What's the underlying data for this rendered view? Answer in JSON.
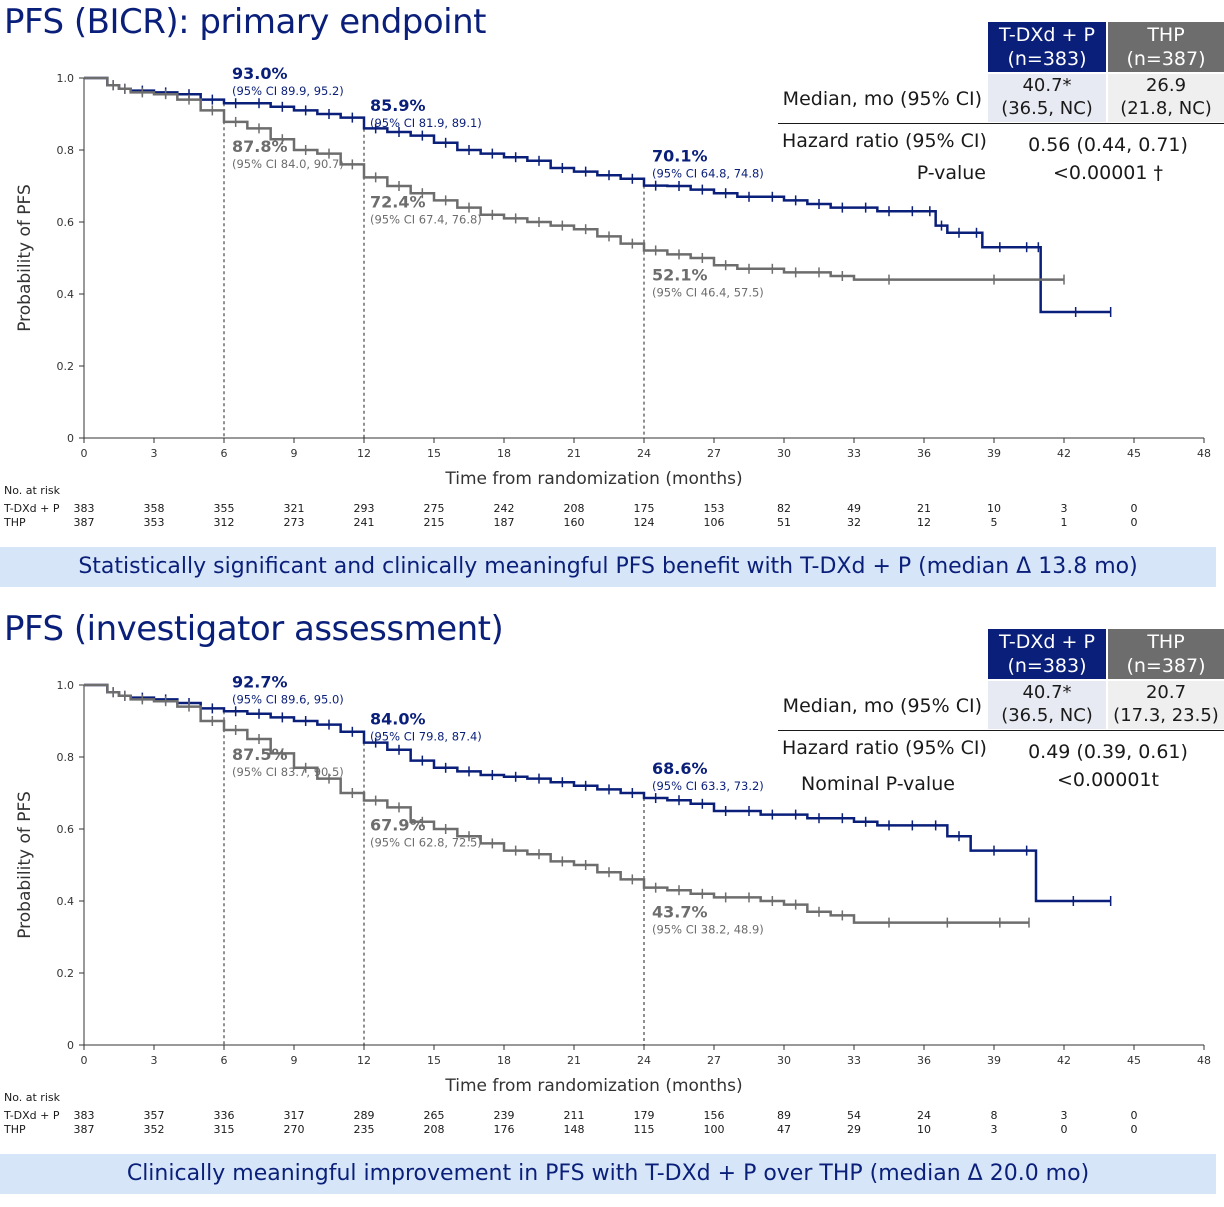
{
  "colors": {
    "tdxd": "#0a1f7a",
    "thp": "#6d6d6d",
    "banner": "#d6e5f7"
  },
  "panels": [
    {
      "title": "PFS (BICR): primary endpoint",
      "arms": {
        "tdxd_label": "T-DXd + P",
        "tdxd_n": "(n=383)",
        "thp_label": "THP",
        "thp_n": "(n=387)"
      },
      "median_label": "Median, mo (95% CI)",
      "median_tdxd": "40.7*",
      "median_tdxd_ci": "(36.5, NC)",
      "median_thp": "26.9",
      "median_thp_ci": "(21.8, NC)",
      "hr_label": "Hazard ratio (95% CI)",
      "hr_value": "0.56 (0.44, 0.71)",
      "p_label": "P-value",
      "p_value": "<0.00001 †",
      "banner": "Statistically significant and clinically meaningful PFS benefit with T-DXd + P (median Δ 13.8 mo)",
      "risk": {
        "header": "No. at risk",
        "tdxd_label": "T-DXd + P",
        "thp_label": "THP",
        "tdxd": [
          "383",
          "358",
          "355",
          "321",
          "293",
          "275",
          "242",
          "208",
          "175",
          "153",
          "82",
          "49",
          "21",
          "10",
          "3",
          "0"
        ],
        "thp": [
          "387",
          "353",
          "312",
          "273",
          "241",
          "215",
          "187",
          "160",
          "124",
          "106",
          "51",
          "32",
          "12",
          "5",
          "1",
          "0"
        ]
      },
      "chart_data": {
        "type": "line",
        "xlabel": "Time from randomization (months)",
        "ylabel": "Probability of PFS",
        "xlim": [
          0,
          48
        ],
        "ylim": [
          0,
          1
        ],
        "xticks": [
          "0",
          "3",
          "6",
          "9",
          "12",
          "15",
          "18",
          "21",
          "24",
          "27",
          "30",
          "33",
          "36",
          "39",
          "42",
          "45",
          "48"
        ],
        "yticks": [
          "0",
          "0.2",
          "0.4",
          "0.6",
          "0.8",
          "1.0"
        ],
        "series": [
          {
            "name": "T-DXd + P",
            "x": [
              0,
              1,
              1.5,
              2,
              3,
              4,
              5,
              6,
              7,
              8,
              9,
              10,
              11,
              12,
              13,
              14,
              15,
              16,
              17,
              18,
              19,
              20,
              21,
              22,
              23,
              24,
              25,
              26,
              27,
              28,
              29,
              30,
              31,
              32,
              33,
              34,
              35,
              36,
              36.5,
              37,
              38,
              38.5,
              40,
              40.8,
              41,
              44
            ],
            "y": [
              1,
              0.98,
              0.97,
              0.965,
              0.96,
              0.955,
              0.94,
              0.93,
              0.93,
              0.92,
              0.91,
              0.9,
              0.89,
              0.86,
              0.85,
              0.84,
              0.82,
              0.8,
              0.79,
              0.78,
              0.77,
              0.75,
              0.74,
              0.73,
              0.72,
              0.701,
              0.7,
              0.69,
              0.68,
              0.67,
              0.67,
              0.66,
              0.65,
              0.64,
              0.64,
              0.63,
              0.63,
              0.63,
              0.59,
              0.57,
              0.57,
              0.53,
              0.53,
              0.53,
              0.35,
              0.35
            ]
          },
          {
            "name": "THP",
            "x": [
              0,
              1,
              1.5,
              2,
              3,
              4,
              5,
              6,
              7,
              8,
              9,
              10,
              11,
              12,
              13,
              14,
              15,
              16,
              17,
              18,
              19,
              20,
              21,
              22,
              23,
              24,
              25,
              26,
              27,
              28,
              29,
              30,
              31,
              32,
              33,
              36,
              42
            ],
            "y": [
              1,
              0.98,
              0.97,
              0.96,
              0.955,
              0.94,
              0.91,
              0.878,
              0.86,
              0.83,
              0.8,
              0.79,
              0.76,
              0.724,
              0.7,
              0.68,
              0.66,
              0.64,
              0.62,
              0.61,
              0.6,
              0.59,
              0.58,
              0.56,
              0.54,
              0.521,
              0.51,
              0.5,
              0.48,
              0.47,
              0.47,
              0.46,
              0.46,
              0.45,
              0.44,
              0.44,
              0.44
            ]
          }
        ],
        "annotations": [
          {
            "arm": "tdxd",
            "x": 6,
            "y": 0.93,
            "pct": "93.0%",
            "ci": "(95% CI 89.9, 95.2)"
          },
          {
            "arm": "tdxd",
            "x": 12,
            "y": 0.859,
            "pct": "85.9%",
            "ci": "(95% CI 81.9, 89.1)"
          },
          {
            "arm": "tdxd",
            "x": 24,
            "y": 0.701,
            "pct": "70.1%",
            "ci": "(95% CI 64.8, 74.8)"
          },
          {
            "arm": "thp",
            "x": 6,
            "y": 0.878,
            "pct": "87.8%",
            "ci": "(95% CI 84.0, 90.7)"
          },
          {
            "arm": "thp",
            "x": 12,
            "y": 0.724,
            "pct": "72.4%",
            "ci": "(95% CI 67.4, 76.8)"
          },
          {
            "arm": "thp",
            "x": 24,
            "y": 0.521,
            "pct": "52.1%",
            "ci": "(95% CI 46.4, 57.5)"
          }
        ]
      }
    },
    {
      "title": "PFS (investigator assessment)",
      "arms": {
        "tdxd_label": "T-DXd + P",
        "tdxd_n": "(n=383)",
        "thp_label": "THP",
        "thp_n": "(n=387)"
      },
      "median_label": "Median, mo (95% CI)",
      "median_tdxd": "40.7*",
      "median_tdxd_ci": "(36.5, NC)",
      "median_thp": "20.7",
      "median_thp_ci": "(17.3, 23.5)",
      "hr_label": "Hazard ratio (95% CI)",
      "hr_value": "0.49 (0.39, 0.61)",
      "p_label": "Nominal P-value",
      "p_value": "<0.00001t",
      "banner": "Clinically meaningful improvement in PFS with T-DXd + P over THP (median Δ 20.0 mo)",
      "risk": {
        "header": "No. at risk",
        "tdxd_label": "T-DXd + P",
        "thp_label": "THP",
        "tdxd": [
          "383",
          "357",
          "336",
          "317",
          "289",
          "265",
          "239",
          "211",
          "179",
          "156",
          "89",
          "54",
          "24",
          "8",
          "3",
          "0"
        ],
        "thp": [
          "387",
          "352",
          "315",
          "270",
          "235",
          "208",
          "176",
          "148",
          "115",
          "100",
          "47",
          "29",
          "10",
          "3",
          "0",
          "0"
        ]
      },
      "chart_data": {
        "type": "line",
        "xlabel": "Time from randomization (months)",
        "ylabel": "Probability of PFS",
        "xlim": [
          0,
          48
        ],
        "ylim": [
          0,
          1
        ],
        "xticks": [
          "0",
          "3",
          "6",
          "9",
          "12",
          "15",
          "18",
          "21",
          "24",
          "27",
          "30",
          "33",
          "36",
          "39",
          "42",
          "45",
          "48"
        ],
        "yticks": [
          "0",
          "0.2",
          "0.4",
          "0.6",
          "0.8",
          "1.0"
        ],
        "series": [
          {
            "name": "T-DXd + P",
            "x": [
              0,
              1,
              1.5,
              2,
              3,
              4,
              5,
              6,
              7,
              8,
              9,
              10,
              11,
              12,
              13,
              14,
              15,
              16,
              17,
              18,
              19,
              20,
              21,
              22,
              23,
              24,
              25,
              26,
              27,
              28,
              29,
              30,
              31,
              32,
              33,
              34,
              35,
              36,
              37,
              38,
              40,
              40.8,
              44
            ],
            "y": [
              1,
              0.98,
              0.97,
              0.965,
              0.96,
              0.95,
              0.935,
              0.927,
              0.92,
              0.91,
              0.9,
              0.89,
              0.87,
              0.84,
              0.82,
              0.79,
              0.77,
              0.76,
              0.75,
              0.745,
              0.74,
              0.73,
              0.72,
              0.71,
              0.7,
              0.686,
              0.68,
              0.67,
              0.65,
              0.65,
              0.64,
              0.64,
              0.63,
              0.63,
              0.62,
              0.61,
              0.61,
              0.61,
              0.58,
              0.54,
              0.54,
              0.4,
              0.4
            ]
          },
          {
            "name": "THP",
            "x": [
              0,
              1,
              1.5,
              2,
              3,
              4,
              5,
              6,
              7,
              8,
              9,
              10,
              11,
              12,
              13,
              14,
              15,
              16,
              17,
              18,
              19,
              20,
              21,
              22,
              23,
              24,
              25,
              26,
              27,
              28,
              29,
              30,
              31,
              32,
              33,
              36,
              38,
              40.5
            ],
            "y": [
              1,
              0.98,
              0.97,
              0.96,
              0.955,
              0.94,
              0.9,
              0.875,
              0.85,
              0.81,
              0.77,
              0.74,
              0.7,
              0.679,
              0.66,
              0.62,
              0.6,
              0.58,
              0.56,
              0.54,
              0.53,
              0.51,
              0.5,
              0.48,
              0.46,
              0.437,
              0.43,
              0.42,
              0.41,
              0.41,
              0.4,
              0.39,
              0.37,
              0.36,
              0.34,
              0.34,
              0.34,
              0.34
            ]
          }
        ],
        "annotations": [
          {
            "arm": "tdxd",
            "x": 6,
            "y": 0.927,
            "pct": "92.7%",
            "ci": "(95% CI 89.6, 95.0)"
          },
          {
            "arm": "tdxd",
            "x": 12,
            "y": 0.84,
            "pct": "84.0%",
            "ci": "(95% CI 79.8, 87.4)"
          },
          {
            "arm": "tdxd",
            "x": 24,
            "y": 0.686,
            "pct": "68.6%",
            "ci": "(95% CI 63.3, 73.2)"
          },
          {
            "arm": "thp",
            "x": 6,
            "y": 0.875,
            "pct": "87.5%",
            "ci": "(95% CI 83.7, 90.5)"
          },
          {
            "arm": "thp",
            "x": 12,
            "y": 0.679,
            "pct": "67.9%",
            "ci": "(95% CI 62.8, 72.5)"
          },
          {
            "arm": "thp",
            "x": 24,
            "y": 0.437,
            "pct": "43.7%",
            "ci": "(95% CI 38.2, 48.9)"
          }
        ]
      }
    }
  ]
}
